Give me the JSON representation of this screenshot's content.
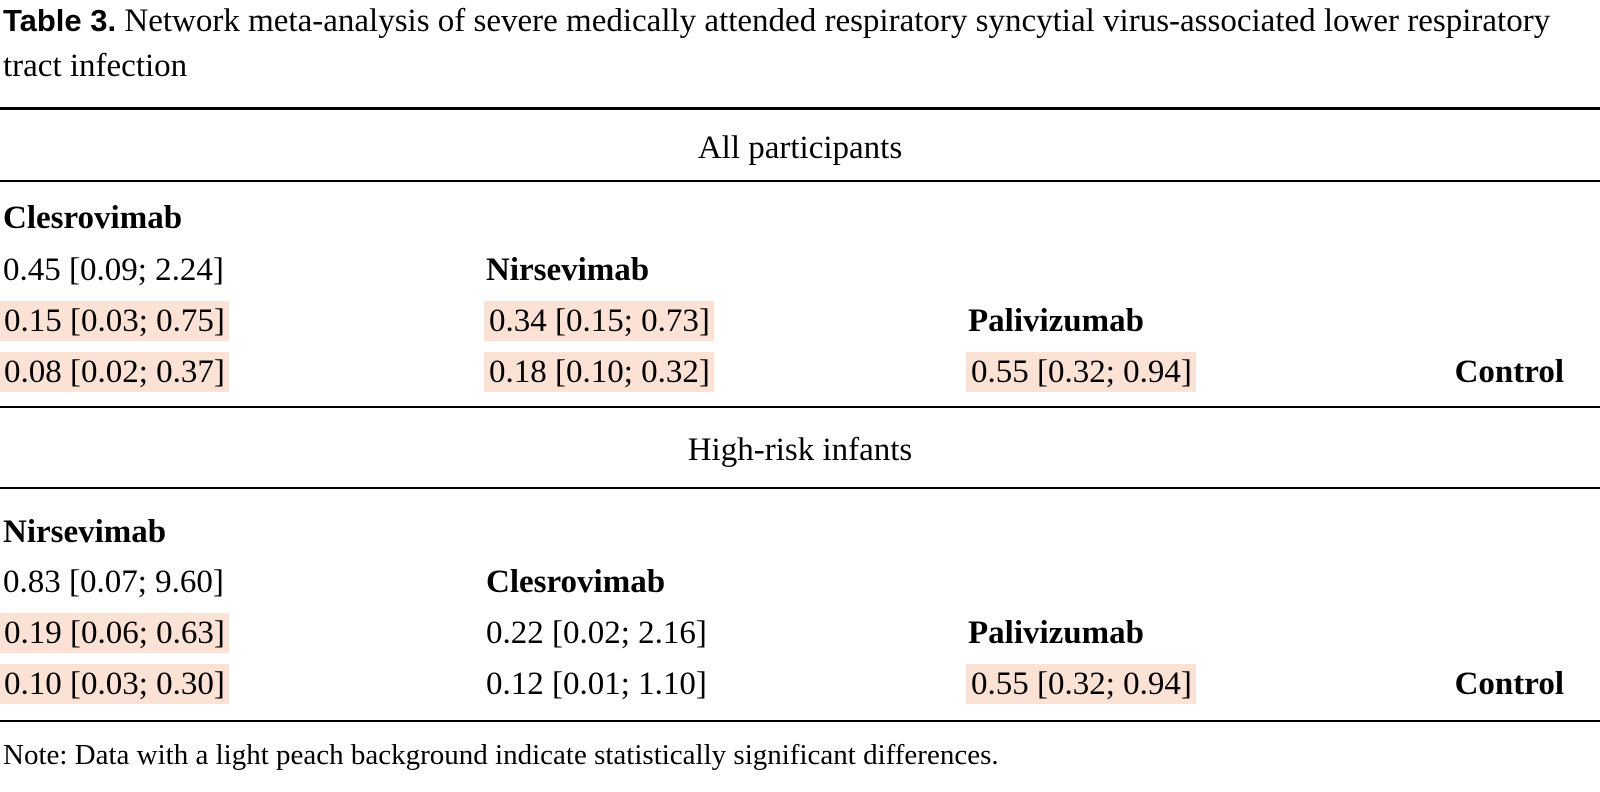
{
  "caption": {
    "label": "Table 3.",
    "text": "Network meta-analysis of severe medically attended respiratory syncytial virus-associated lower respiratory tract infection"
  },
  "sections": [
    {
      "title": "All participants",
      "rows": [
        [
          {
            "text": "Clesrovimab",
            "bold": true
          }
        ],
        [
          {
            "text": "0.45 [0.09; 2.24]"
          },
          {
            "text": "Nirsevimab",
            "bold": true
          }
        ],
        [
          {
            "text": "0.15 [0.03; 0.75]",
            "significant": true
          },
          {
            "text": "0.34 [0.15; 0.73]",
            "significant": true
          },
          {
            "text": "Palivizumab",
            "bold": true
          }
        ],
        [
          {
            "text": "0.08 [0.02; 0.37]",
            "significant": true
          },
          {
            "text": "0.18 [0.10; 0.32]",
            "significant": true
          },
          {
            "text": "0.55 [0.32; 0.94]",
            "significant": true
          },
          {
            "text": "Control",
            "bold": true
          }
        ]
      ]
    },
    {
      "title": "High-risk infants",
      "rows": [
        [
          {
            "text": "Nirsevimab",
            "bold": true
          }
        ],
        [
          {
            "text": "0.83 [0.07; 9.60]"
          },
          {
            "text": "Clesrovimab",
            "bold": true
          }
        ],
        [
          {
            "text": "0.19 [0.06; 0.63]",
            "significant": true
          },
          {
            "text": "0.22 [0.02; 2.16]"
          },
          {
            "text": "Palivizumab",
            "bold": true
          }
        ],
        [
          {
            "text": "0.10 [0.03; 0.30]",
            "significant": true
          },
          {
            "text": "0.12 [0.01; 1.10]"
          },
          {
            "text": "0.55 [0.32; 0.94]",
            "significant": true
          },
          {
            "text": "Control",
            "bold": true
          }
        ]
      ]
    }
  ],
  "note": "Note: Data with a light peach background indicate statistically significant differences.",
  "colors": {
    "significant_background": "#fbe2d5",
    "text": "#000000"
  }
}
